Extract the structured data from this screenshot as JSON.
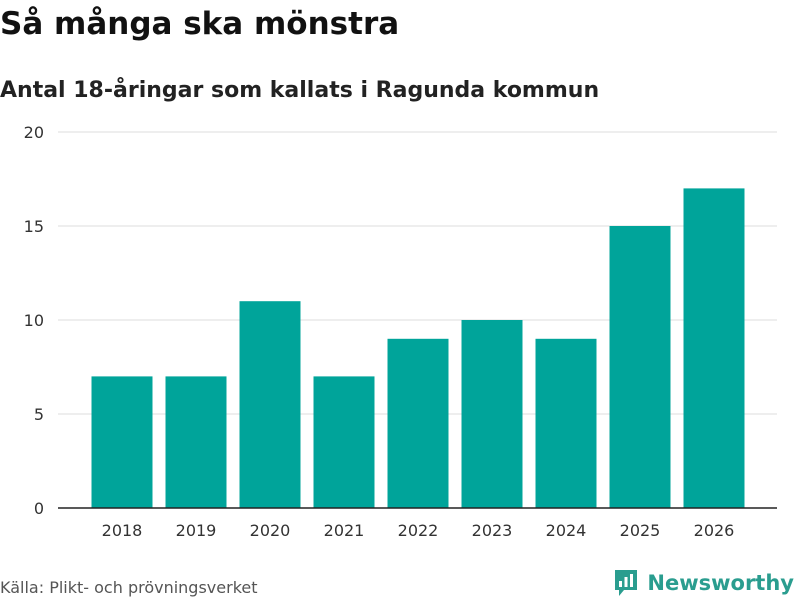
{
  "chart_data": {
    "type": "bar",
    "title": "Så många ska mönstra",
    "subtitle": "Antal 18-åringar som kallats i Ragunda kommun",
    "categories": [
      "2018",
      "2019",
      "2020",
      "2021",
      "2022",
      "2023",
      "2024",
      "2025",
      "2026"
    ],
    "values": [
      7,
      7,
      11,
      7,
      9,
      10,
      9,
      15,
      17
    ],
    "ylim": [
      0,
      20
    ],
    "yticks": [
      "0",
      "5",
      "10",
      "15",
      "20"
    ],
    "grid": true,
    "xlabel": "",
    "ylabel": ""
  },
  "source": "Källa: Plikt- och prövningsverket",
  "brand": "Newsworthy",
  "colors": {
    "bar": "#00a49a",
    "grid": "#dddddd",
    "axis": "#222222",
    "brand": "#2a9d8f"
  },
  "icons": {
    "brand_logo": "newsworthy-logo-icon"
  }
}
